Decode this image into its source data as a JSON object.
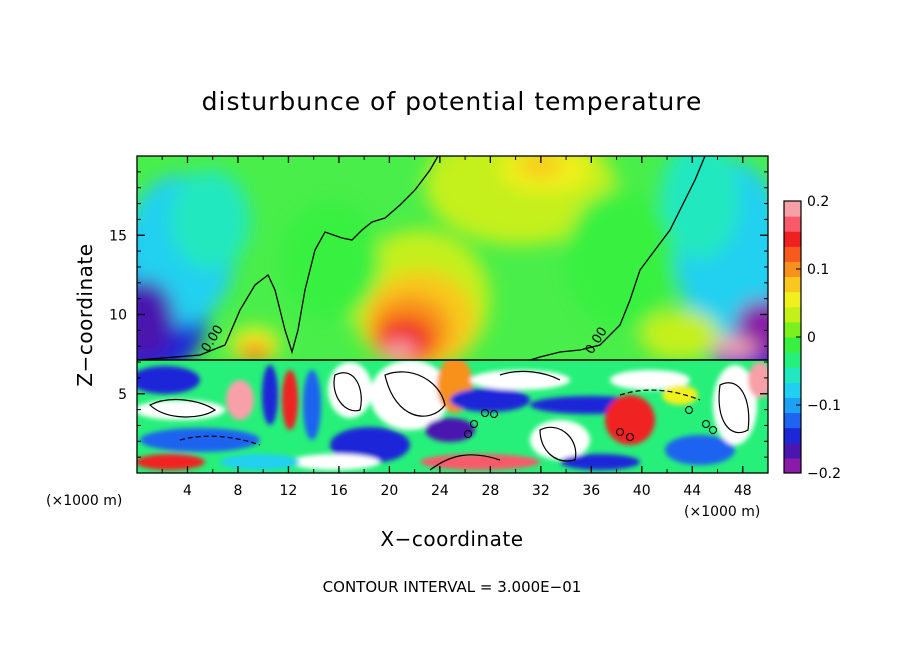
{
  "chart_data": {
    "type": "heatmap",
    "title": "disturbunce of potential temperature",
    "xlabel": "X−coordinate",
    "ylabel": "Z−coordinate",
    "x_unit_left": "(×1000 m)",
    "x_unit_right": "(×1000 m)",
    "xlim": [
      0,
      50
    ],
    "ylim": [
      0,
      20
    ],
    "x_ticks": [
      4,
      8,
      12,
      16,
      20,
      24,
      28,
      32,
      36,
      40,
      44,
      48
    ],
    "x_tick_labels": [
      "4",
      "8",
      "12",
      "16",
      "20",
      "24",
      "28",
      "32",
      "36",
      "40",
      "44",
      "48"
    ],
    "y_ticks": [
      5,
      10,
      15
    ],
    "y_tick_labels": [
      "5",
      "10",
      "15"
    ],
    "colorbar": {
      "range": [
        -0.2,
        0.2
      ],
      "ticks": [
        0.2,
        0.1,
        0,
        -0.1,
        -0.2
      ],
      "tick_labels": [
        "0.2",
        "0.1",
        "0",
        "−0.1",
        "−0.2"
      ],
      "colors": [
        "#8a1aa8",
        "#4a16b0",
        "#1c28d8",
        "#1e64f0",
        "#1ea0f4",
        "#20d0f0",
        "#22e8c0",
        "#26f07a",
        "#38f040",
        "#7af01c",
        "#c4f01a",
        "#f0f01e",
        "#f8c81e",
        "#f8901e",
        "#f85a1e",
        "#f02020",
        "#f85a6a",
        "#f8a0a8"
      ]
    },
    "contour_labels": [
      "0.00",
      "0.00"
    ],
    "footnote": "CONTOUR INTERVAL = 3.000E−01"
  }
}
